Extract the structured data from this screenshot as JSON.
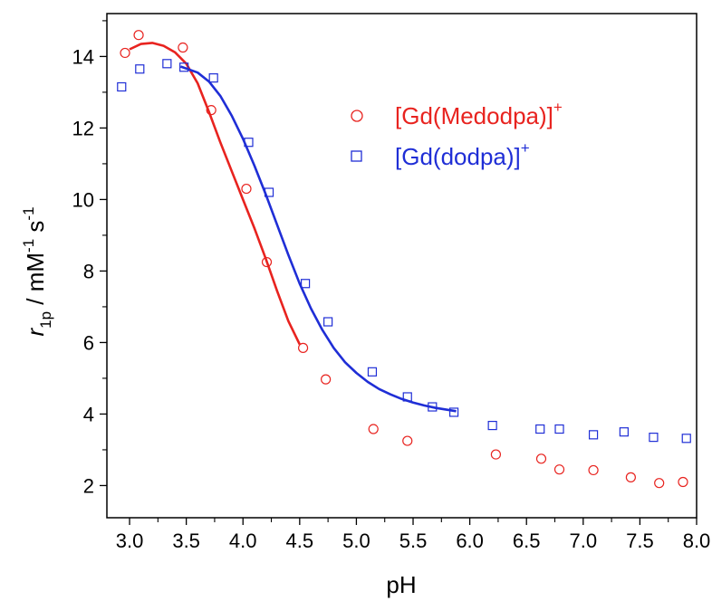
{
  "chart_data": {
    "type": "scatter",
    "xlabel": "pH",
    "ylabel": {
      "main": "r",
      "subscript": "1p",
      "rest": " / mM",
      "sup1": "-1",
      "rest2": " s",
      "sup2": "-1"
    },
    "xlim": [
      2.8,
      8.0
    ],
    "ylim": [
      1.1,
      15.2
    ],
    "xticks": [
      "3.0",
      "3.5",
      "4.0",
      "4.5",
      "5.0",
      "5.5",
      "6.0",
      "6.5",
      "7.0",
      "7.5",
      "8.0"
    ],
    "yticks": [
      "2",
      "4",
      "6",
      "8",
      "10",
      "12",
      "14"
    ],
    "legend_position": "upper-right",
    "series": [
      {
        "name": "[Gd(Medodpa)]",
        "name_sup": "+",
        "color": "#e8231f",
        "marker": "circle",
        "points": [
          [
            2.96,
            14.1
          ],
          [
            3.08,
            14.6
          ],
          [
            3.47,
            14.25
          ],
          [
            3.72,
            12.5
          ],
          [
            4.03,
            10.3
          ],
          [
            4.21,
            8.25
          ],
          [
            4.53,
            5.85
          ],
          [
            4.73,
            4.97
          ],
          [
            5.15,
            3.58
          ],
          [
            5.45,
            3.25
          ],
          [
            6.23,
            2.87
          ],
          [
            6.63,
            2.75
          ],
          [
            6.79,
            2.45
          ],
          [
            7.09,
            2.43
          ],
          [
            7.42,
            2.23
          ],
          [
            7.67,
            2.07
          ],
          [
            7.88,
            2.1
          ]
        ],
        "fit": [
          [
            3.0,
            14.2
          ],
          [
            3.1,
            14.35
          ],
          [
            3.2,
            14.38
          ],
          [
            3.3,
            14.3
          ],
          [
            3.4,
            14.12
          ],
          [
            3.5,
            13.8
          ],
          [
            3.6,
            13.25
          ],
          [
            3.7,
            12.45
          ],
          [
            3.8,
            11.6
          ],
          [
            3.9,
            10.8
          ],
          [
            4.0,
            10.0
          ],
          [
            4.1,
            9.2
          ],
          [
            4.2,
            8.35
          ],
          [
            4.3,
            7.45
          ],
          [
            4.4,
            6.6
          ],
          [
            4.5,
            5.95
          ]
        ]
      },
      {
        "name": "[Gd(dodpa)]",
        "name_sup": "+",
        "color": "#1f2ed6",
        "marker": "square",
        "points": [
          [
            2.93,
            13.15
          ],
          [
            3.09,
            13.65
          ],
          [
            3.33,
            13.8
          ],
          [
            3.48,
            13.7
          ],
          [
            3.74,
            13.4
          ],
          [
            4.05,
            11.6
          ],
          [
            4.23,
            10.2
          ],
          [
            4.55,
            7.65
          ],
          [
            4.75,
            6.58
          ],
          [
            5.14,
            5.18
          ],
          [
            5.45,
            4.48
          ],
          [
            5.67,
            4.2
          ],
          [
            5.86,
            4.05
          ],
          [
            6.2,
            3.68
          ],
          [
            6.62,
            3.58
          ],
          [
            6.79,
            3.58
          ],
          [
            7.09,
            3.42
          ],
          [
            7.36,
            3.5
          ],
          [
            7.62,
            3.35
          ],
          [
            7.91,
            3.32
          ]
        ],
        "fit": [
          [
            3.45,
            13.72
          ],
          [
            3.6,
            13.55
          ],
          [
            3.7,
            13.3
          ],
          [
            3.8,
            12.9
          ],
          [
            3.9,
            12.35
          ],
          [
            4.0,
            11.7
          ],
          [
            4.1,
            10.95
          ],
          [
            4.2,
            10.15
          ],
          [
            4.3,
            9.3
          ],
          [
            4.4,
            8.45
          ],
          [
            4.5,
            7.65
          ],
          [
            4.6,
            6.95
          ],
          [
            4.7,
            6.35
          ],
          [
            4.8,
            5.85
          ],
          [
            4.9,
            5.45
          ],
          [
            5.0,
            5.15
          ],
          [
            5.1,
            4.9
          ],
          [
            5.2,
            4.7
          ],
          [
            5.3,
            4.55
          ],
          [
            5.4,
            4.42
          ],
          [
            5.5,
            4.32
          ],
          [
            5.6,
            4.24
          ],
          [
            5.7,
            4.17
          ],
          [
            5.8,
            4.12
          ],
          [
            5.88,
            4.08
          ]
        ]
      }
    ]
  }
}
